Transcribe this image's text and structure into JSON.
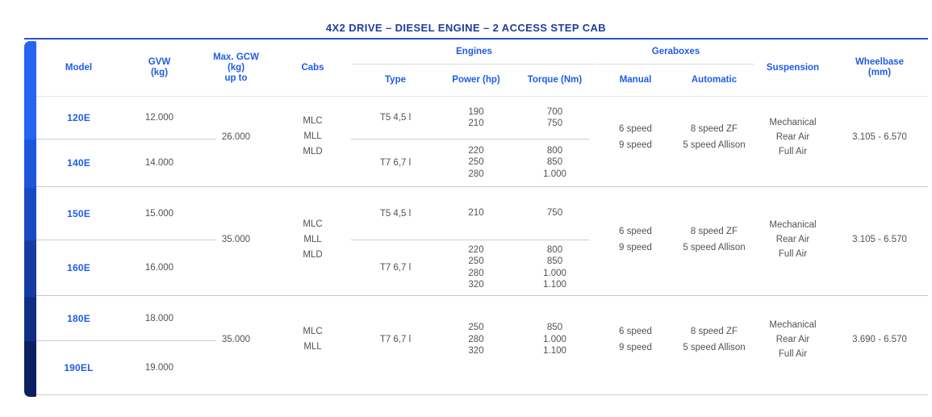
{
  "title": "4X2 DRIVE – DIESEL ENGINE – 2 ACCESS STEP CAB",
  "colors": {
    "accent_blue": "#1f5ce8",
    "title_navy": "#1d3f9e",
    "body_text": "#55524c",
    "bar_gradient_top": "#2565f0",
    "bar_gradient_bottom": "#0b2060",
    "divider_gray": "#c9c9c9"
  },
  "header": {
    "model": "Model",
    "gvw": "GVW\n(kg)",
    "gcw": "Max. GCW\n(kg)\nup to",
    "cabs": "Cabs",
    "engines_group": "Engines",
    "gearboxes_group": "Geraboxes",
    "type": "Type",
    "power": "Power (hp)",
    "torque": "Torque (Nm)",
    "manual": "Manual",
    "automatic": "Automatic",
    "suspension": "Suspension",
    "wheelbase": "Wheelbase\n(mm)"
  },
  "blocks": [
    {
      "models": [
        {
          "name": "120E",
          "gvw": "12.000"
        },
        {
          "name": "140E",
          "gvw": "14.000"
        }
      ],
      "gcw": "26.000",
      "cabs": "MLC\nMLL\nMLD",
      "engines": [
        {
          "type": "T5 4,5 l",
          "power": "190\n210",
          "torque": "700\n750"
        },
        {
          "type": "T7 6,7 l",
          "power": "220\n250\n280",
          "torque": "800\n850\n1.000"
        }
      ],
      "manual": "6 speed\n9 speed",
      "automatic": "8 speed ZF\n5 speed Allison",
      "suspension": "Mechanical\nRear Air\nFull Air",
      "wheelbase": "3.105 - 6.570"
    },
    {
      "models": [
        {
          "name": "150E",
          "gvw": "15.000"
        },
        {
          "name": "160E",
          "gvw": "16.000"
        }
      ],
      "gcw": "35.000",
      "cabs": "MLC\nMLL\nMLD",
      "engines": [
        {
          "type": "T5 4,5 l",
          "power": "210",
          "torque": "750"
        },
        {
          "type": "T7 6,7 l",
          "power": "220\n250\n280\n320",
          "torque": "800\n850\n1.000\n1.100"
        }
      ],
      "manual": "6 speed\n9 speed",
      "automatic": "8 speed ZF\n5 speed Allison",
      "suspension": "Mechanical\nRear Air\nFull Air",
      "wheelbase": "3.105 - 6.570"
    },
    {
      "models": [
        {
          "name": "180E",
          "gvw": "18.000"
        },
        {
          "name": "190EL",
          "gvw": "19.000"
        }
      ],
      "gcw": "35.000",
      "cabs": "MLC\nMLL",
      "engines": [
        {
          "type": "T7 6,7 l",
          "power": "250\n280\n320",
          "torque": "850\n1.000\n1.100"
        }
      ],
      "manual": "6 speed\n9 speed",
      "automatic": "8 speed ZF\n5 speed Allison",
      "suspension": "Mechanical\nRear Air\nFull Air",
      "wheelbase": "3.690 - 6.570"
    }
  ]
}
